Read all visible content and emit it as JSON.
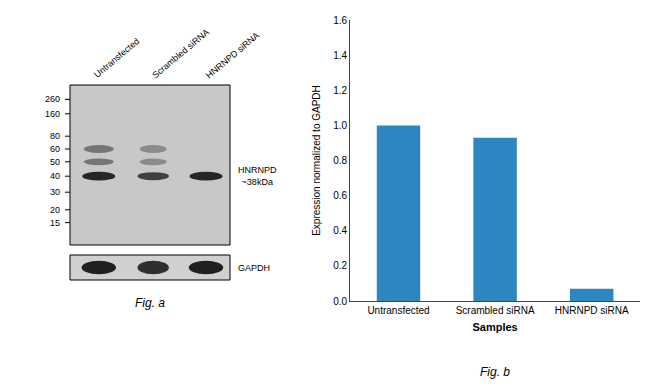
{
  "chart_data": [
    {
      "type": "bar",
      "title": "Fig. b",
      "categories": [
        "Untransfected",
        "Scrambled siRNA",
        "HNRNPD siRNA"
      ],
      "values": [
        1.0,
        0.93,
        0.07
      ],
      "color": "#2e86c1",
      "xlabel": "Samples",
      "ylabel": "Expression normalized to GAPDH",
      "ylim": [
        0,
        1.6
      ],
      "yticks": [
        {
          "value": 0,
          "label": "0.0"
        },
        0.2,
        0.4,
        0.6,
        0.8,
        {
          "value": 1.0,
          "label": "1.0"
        },
        1.2,
        1.4,
        1.6
      ],
      "grid": false
    },
    {
      "type": "western blot",
      "title": "Fig. a",
      "categories": [
        "Untransfected",
        "Scrambled siRNA",
        "HNRNPD siRNA"
      ],
      "annotations": [
        "260",
        "160",
        "80",
        "60",
        "50",
        "40",
        "30",
        "20",
        "15",
        "HNRNPD\n~38kDa",
        "GAPDH"
      ]
    }
  ]
}
